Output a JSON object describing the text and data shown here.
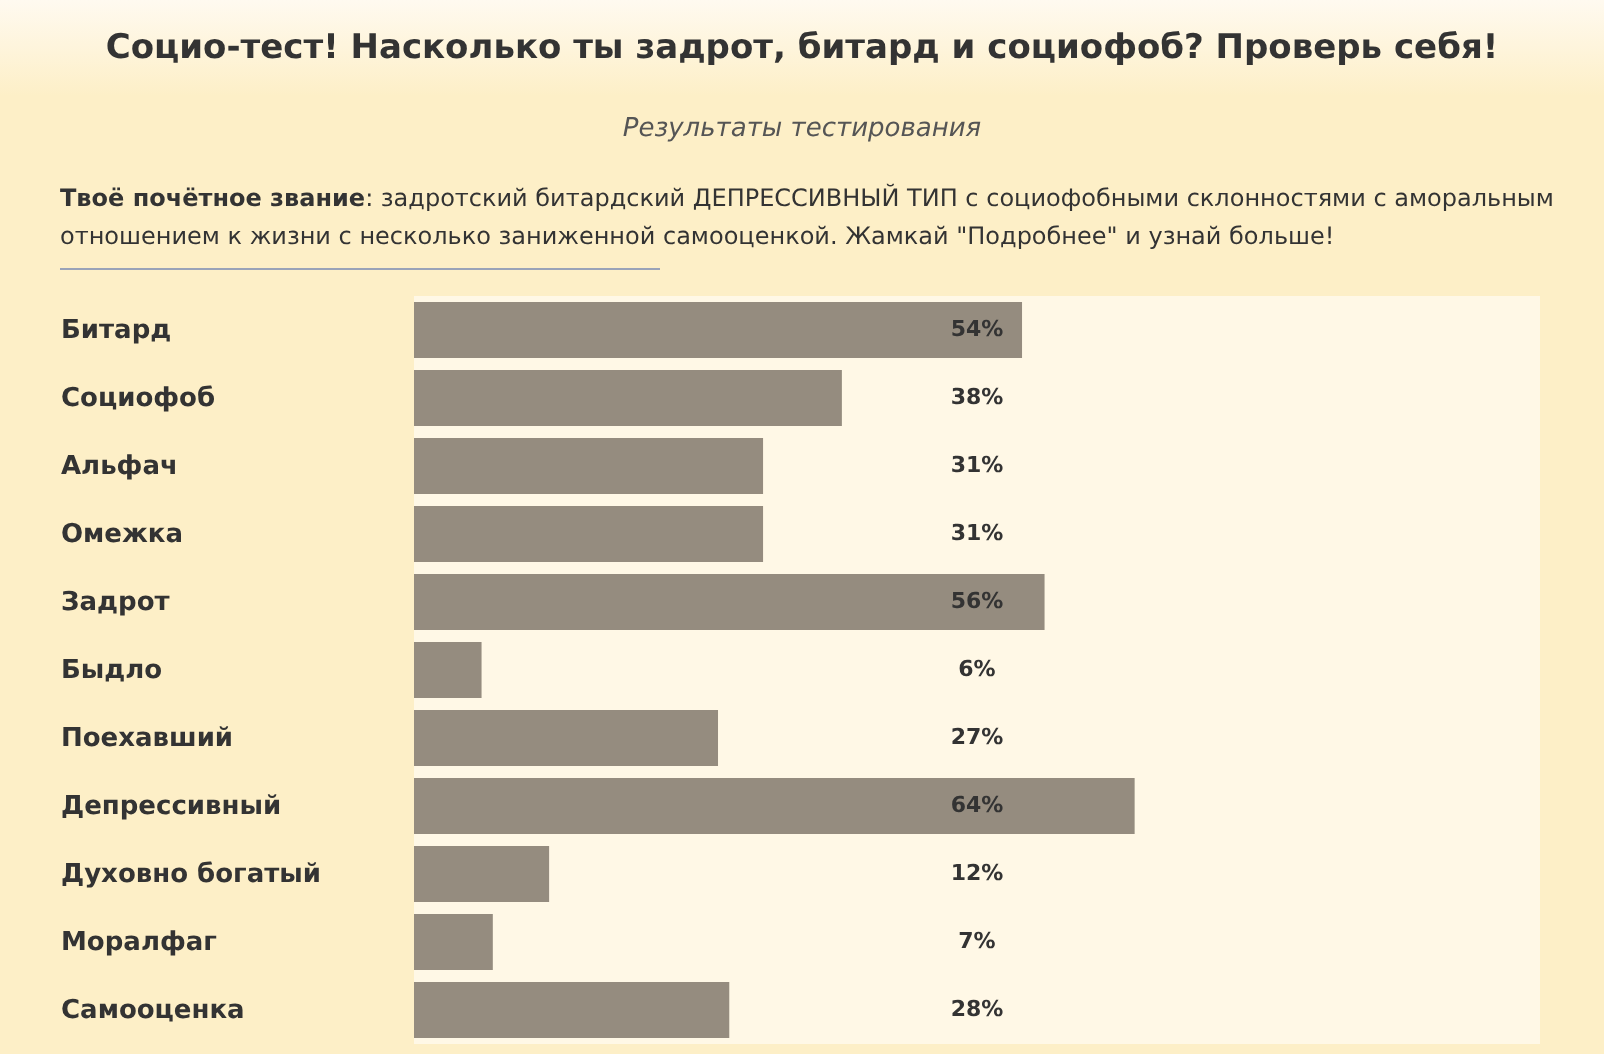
{
  "chart_data": {
    "type": "bar",
    "orientation": "horizontal",
    "title": "Социо-тест! Насколько ты задрот, битард и социофоб? Проверь себя!",
    "subtitle": "Результаты тестирования",
    "annotations": [
      "Твоё почётное звание: задротский битардский ДЕПРЕССИВНЫЙ ТИП с социофобными склонностями с аморальным отношением к жизни с несколько заниженной самооценкой. Жамкай \"Подробнее\" и узнай больше!"
    ],
    "categories": [
      "Битард",
      "Социофоб",
      "Альфач",
      "Омежка",
      "Задрот",
      "Быдло",
      "Поехавший",
      "Депрессивный",
      "Духовно богатый",
      "Моралфаг",
      "Самооценка"
    ],
    "values": [
      54,
      38,
      31,
      31,
      56,
      6,
      27,
      64,
      12,
      7,
      28
    ],
    "value_labels": [
      "54%",
      "38%",
      "31%",
      "31%",
      "56%",
      "6%",
      "27%",
      "64%",
      "12%",
      "7%",
      "28%"
    ],
    "color": "#958c7f",
    "xlim": [
      0,
      100
    ],
    "tick_labels": "y"
  }
}
